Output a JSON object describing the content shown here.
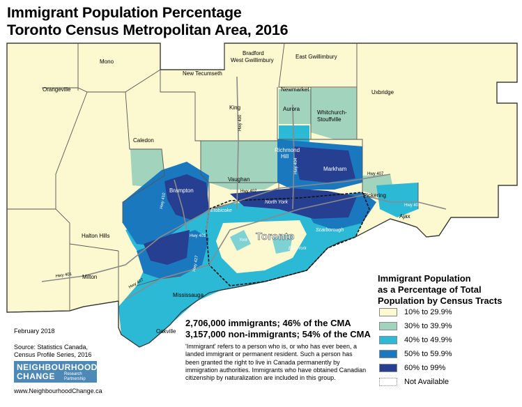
{
  "title": {
    "line1": "Immigrant Population Percentage",
    "line2": "Toronto Census Metropolitan Area, 2016"
  },
  "map": {
    "places": {
      "mono": "Mono",
      "bradford": "Bradford",
      "west_gwillimbury": "West Gwillimbury",
      "east_gwillimbury": "East Gwillimbury",
      "new_tecumseth": "New Tecumseth",
      "orangeville": "Orangeville",
      "newmarket": "Newmarket",
      "uxbridge": "Uxbridge",
      "king": "King",
      "aurora": "Aurora",
      "whitchurch": "Whitchurch-",
      "stouffville": "Stouffville",
      "caledon": "Caledon",
      "richmond": "Richmond",
      "hill": "Hill",
      "vaughan": "Vaughan",
      "markham": "Markham",
      "brampton": "Brampton",
      "pickering": "Pickering",
      "ajax": "Ajax",
      "etobicoke": "Etobicoke",
      "north_york": "North York",
      "scarborough": "Scarborough",
      "toronto": "Toronto",
      "york": "York",
      "east_york": "East York",
      "halton_hills": "Halton Hills",
      "milton": "Milton",
      "mississauga": "Mississauga",
      "oakville": "Oakville"
    },
    "highways": {
      "hwy400": "Hwy 400",
      "hwy404": "Hwy 404",
      "hwy407": "Hwy 407",
      "hwy401": "Hwy 401",
      "hwy410": "Hwy 410",
      "hwy427": "Hwy 427",
      "hwy403": "Hwy 403"
    }
  },
  "legend": {
    "title_lines": [
      "Immigrant Population",
      "as a Percentage of Total",
      "Population by Census Tracts"
    ],
    "items": [
      {
        "label": "10% to 29.9%",
        "color": "#fcf8cf"
      },
      {
        "label": "30% to 39.9%",
        "color": "#a2d3bd"
      },
      {
        "label": "40% to 49.9%",
        "color": "#2cb9d6"
      },
      {
        "label": "50% to 59.9%",
        "color": "#1a78be"
      },
      {
        "label": "60% to 99%",
        "color": "#273f91"
      },
      {
        "label": "Not Available",
        "color": "#ffffff"
      }
    ]
  },
  "stats": {
    "line1": "2,706,000 immigrants; 46% of the CMA",
    "line2": "3,157,000 non-immigrants; 54% of the CMA"
  },
  "note": "'Immigrant' refers to a person who is, or who has ever been, a landed immigrant or permanent resident. Such a person has been granted the right to live in Canada permanently by immigration authorities. Immigrants who have obtained Canadian citizenship by naturalization are included in this group.",
  "date": "February 2018",
  "source": {
    "line1": "Source: Statistics Canada,",
    "line2": "Census Profile Series, 2016"
  },
  "logo": {
    "line1": "NEIGHBOURHOOD",
    "line2": "CHANGE",
    "sub1": "Research",
    "sub2": "Partnership"
  },
  "url": "www.NeighbourhoodChange.ca"
}
